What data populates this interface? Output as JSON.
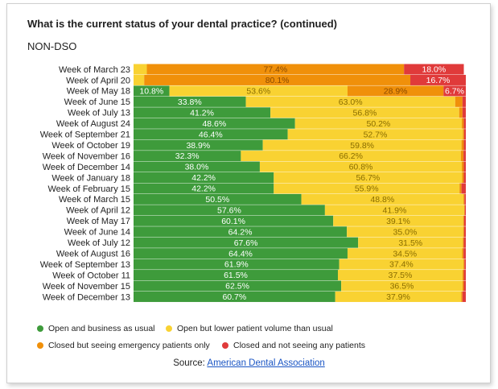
{
  "title": "What is the current status of your dental practice? (continued)",
  "subtitle": "NON-DSO",
  "source_prefix": "Source: ",
  "source_link": "American Dental Association",
  "chart_data": {
    "type": "bar",
    "orientation": "horizontal-stacked-100",
    "categories": [
      "Week of March 23",
      "Week of April 20",
      "Week of May 18",
      "Week of June 15",
      "Week of July 13",
      "Week of August 24",
      "Week of September 21",
      "Week of October 19",
      "Week of November 16",
      "Week of December 14",
      "Week of January 18",
      "Week of February 15",
      "Week of March 15",
      "Week of April 12",
      "Week of May 17",
      "Week of June 14",
      "Week of July 12",
      "Week of August 16",
      "Week of September 13",
      "Week of October 11",
      "Week of November 15",
      "Week of December 13"
    ],
    "series": [
      {
        "name": "Open and business as usual",
        "color": "#3e9b3b",
        "values": [
          0,
          0,
          10.8,
          33.8,
          41.2,
          48.6,
          46.4,
          38.9,
          32.3,
          38.0,
          42.2,
          42.2,
          50.5,
          57.6,
          60.1,
          64.2,
          67.6,
          64.4,
          61.9,
          61.5,
          62.5,
          60.7
        ],
        "labels": [
          "",
          "",
          "10.8%",
          "33.8%",
          "41.2%",
          "48.6%",
          "46.4%",
          "38.9%",
          "32.3%",
          "38.0%",
          "42.2%",
          "42.2%",
          "50.5%",
          "57.6%",
          "60.1%",
          "64.2%",
          "67.6%",
          "64.4%",
          "61.9%",
          "61.5%",
          "62.5%",
          "60.7%"
        ]
      },
      {
        "name": "Open but lower patient volume than usual",
        "color": "#f9d232",
        "values": [
          4.0,
          3.2,
          53.6,
          63.0,
          56.8,
          50.2,
          52.7,
          59.8,
          66.2,
          60.8,
          56.7,
          55.9,
          48.8,
          41.9,
          39.1,
          35.0,
          31.5,
          34.5,
          37.4,
          37.5,
          36.5,
          37.9
        ],
        "labels": [
          "",
          "",
          "53.6%",
          "63.0%",
          "56.8%",
          "50.2%",
          "52.7%",
          "59.8%",
          "66.2%",
          "60.8%",
          "56.7%",
          "55.9%",
          "48.8%",
          "41.9%",
          "39.1%",
          "35.0%",
          "31.5%",
          "34.5%",
          "37.4%",
          "37.5%",
          "36.5%",
          "37.9%"
        ]
      },
      {
        "name": "Closed but seeing emergency patients only",
        "color": "#f0900a",
        "values": [
          77.4,
          80.1,
          28.9,
          2.2,
          1.0,
          0.6,
          0.4,
          0.7,
          0.8,
          0.6,
          0.5,
          0.6,
          0.3,
          0.2,
          0.3,
          0.3,
          0.3,
          0.4,
          0.3,
          0.4,
          0.4,
          0.4
        ],
        "labels": [
          "77.4%",
          "80.1%",
          "28.9%",
          "",
          "",
          "",
          "",
          "",
          "",
          "",
          "",
          "",
          "",
          "",
          "",
          "",
          "",
          "",
          "",
          "",
          "",
          ""
        ]
      },
      {
        "name": "Closed and not seeing any patients",
        "color": "#e03a3a",
        "values": [
          18.0,
          16.7,
          6.7,
          1.0,
          1.0,
          0.6,
          0.5,
          0.6,
          0.7,
          0.6,
          0.6,
          1.3,
          0.4,
          0.3,
          0.5,
          0.5,
          0.6,
          0.7,
          0.4,
          0.6,
          0.6,
          1.0
        ],
        "labels": [
          "18.0%",
          "16.7%",
          "6.7%",
          "",
          "",
          "",
          "",
          "",
          "",
          "",
          "",
          "",
          "",
          "",
          "",
          "",
          "",
          "",
          "",
          "",
          "",
          ""
        ]
      }
    ],
    "xlim": [
      0,
      100
    ],
    "legend_position": "bottom"
  }
}
